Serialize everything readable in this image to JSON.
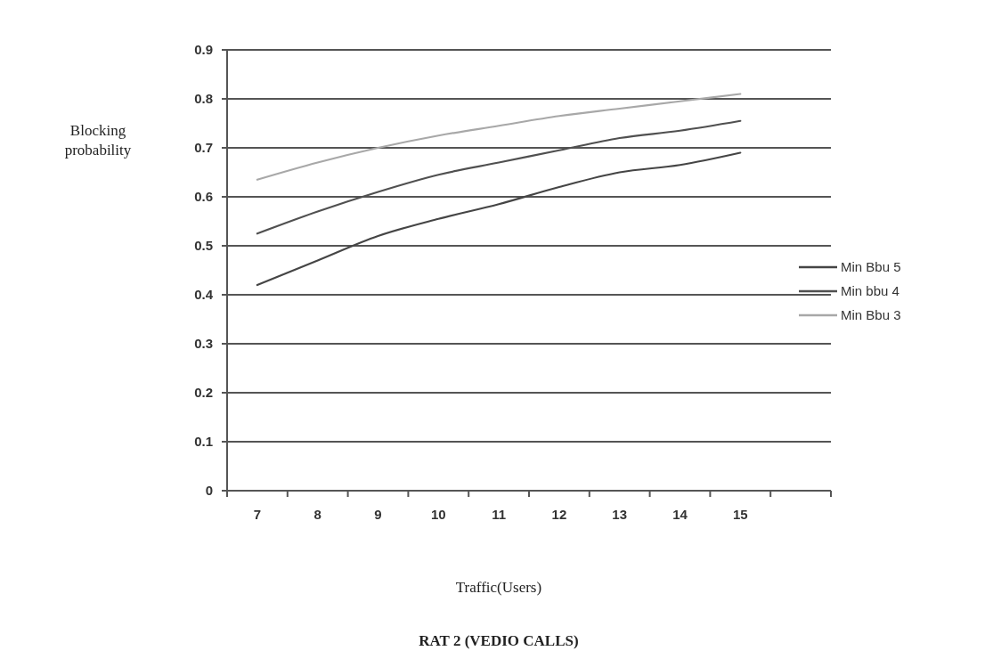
{
  "chart_data": {
    "type": "line",
    "title": "RAT 2 (VEDIO CALLS)",
    "xlabel": "Traffic(Users)",
    "ylabel": "Blocking probability",
    "categories": [
      "7",
      "8",
      "9",
      "10",
      "11",
      "12",
      "13",
      "14",
      "15",
      null
    ],
    "series": [
      {
        "name": "Min Bbu 5",
        "color": "#454545",
        "values": [
          0.42,
          0.47,
          0.52,
          0.555,
          0.585,
          0.62,
          0.65,
          0.665,
          0.69,
          null
        ]
      },
      {
        "name": "Min bbu 4",
        "color": "#505050",
        "values": [
          0.525,
          0.57,
          0.61,
          0.645,
          0.67,
          0.695,
          0.72,
          0.735,
          0.755,
          null
        ]
      },
      {
        "name": "Min Bbu 3",
        "color": "#a8a8a8",
        "values": [
          0.635,
          0.67,
          0.7,
          0.725,
          0.745,
          0.765,
          0.78,
          0.795,
          0.81,
          null
        ]
      }
    ],
    "ylim": [
      0,
      0.9
    ],
    "yticks": [
      0,
      0.1,
      0.2,
      0.3,
      0.4,
      0.5,
      0.6,
      0.7,
      0.8,
      0.9
    ],
    "grid": "y",
    "legend": "right",
    "marker": "none",
    "line_style": "solid"
  }
}
